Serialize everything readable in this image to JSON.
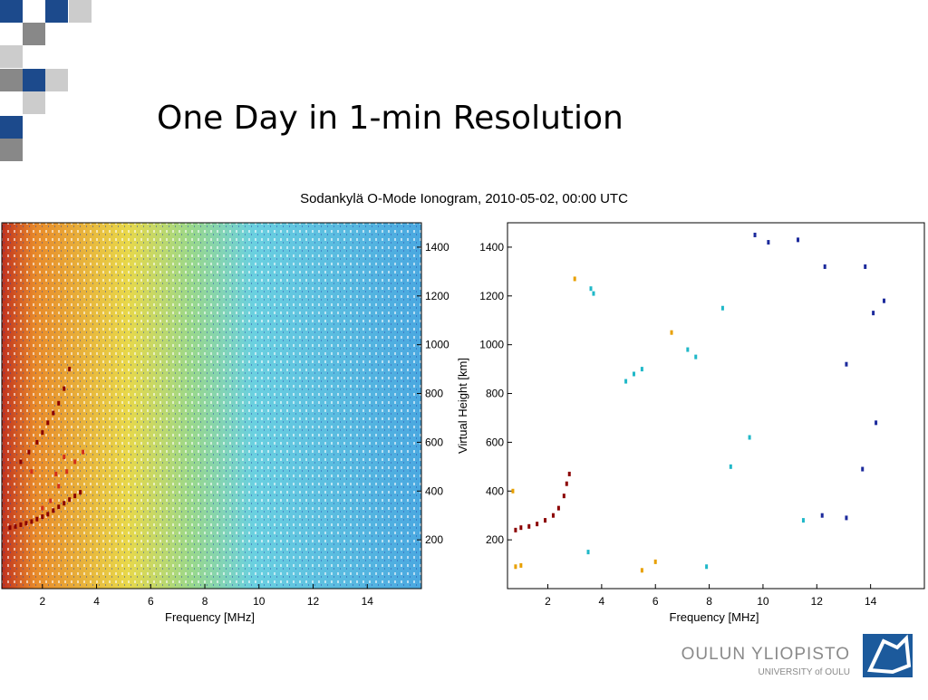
{
  "slide": {
    "title": "One Day in 1-min Resolution",
    "logo_name": "OULUN YLIOPISTO",
    "logo_subname": "UNIVERSITY of OULU"
  },
  "figure_title": "Sodankylä O-Mode Ionogram, 2010-05-02, 00:00 UTC",
  "chart_data": [
    {
      "type": "scatter",
      "xlabel": "Frequency [MHz]",
      "xlim": [
        0.5,
        16
      ],
      "ylim": [
        0,
        1500
      ],
      "xticks": [
        2,
        4,
        6,
        8,
        10,
        12,
        14
      ],
      "yticks": [
        200,
        400,
        600,
        800,
        1000,
        1200,
        1400
      ],
      "series": [
        {
          "color": "#8b0000",
          "x": [
            0.8,
            1.0,
            1.2,
            1.4,
            1.6,
            1.8,
            2.0,
            2.2,
            2.4,
            2.6,
            2.8,
            3.0,
            3.2,
            3.4,
            1.2,
            1.5,
            1.8,
            2.0,
            2.2,
            2.4,
            2.6,
            2.8,
            3.0
          ],
          "values": [
            250,
            255,
            262,
            268,
            275,
            285,
            295,
            305,
            320,
            335,
            350,
            365,
            380,
            395,
            520,
            560,
            600,
            640,
            680,
            720,
            760,
            820,
            900
          ]
        },
        {
          "color": "#d2301c",
          "x": [
            2.0,
            2.3,
            2.6,
            2.9,
            3.2,
            3.5,
            2.5,
            2.8,
            1.6
          ],
          "values": [
            330,
            360,
            420,
            480,
            520,
            560,
            470,
            540,
            480
          ]
        }
      ]
    },
    {
      "type": "scatter",
      "xlabel": "Frequency [MHz]",
      "ylabel": "Virtual Height [km]",
      "xlim": [
        0.5,
        16
      ],
      "ylim": [
        0,
        1500
      ],
      "xticks": [
        2,
        4,
        6,
        8,
        10,
        12,
        14
      ],
      "yticks": [
        200,
        400,
        600,
        800,
        1000,
        1200,
        1400
      ],
      "series": [
        {
          "color": "#8b0000",
          "x": [
            0.8,
            1.0,
            1.3,
            1.6,
            1.9,
            2.2,
            2.4,
            2.6,
            2.7,
            2.8
          ],
          "values": [
            240,
            250,
            255,
            265,
            280,
            300,
            330,
            380,
            430,
            470
          ]
        },
        {
          "color": "#e8a000",
          "x": [
            0.8,
            1.0,
            3.0,
            6.0,
            5.5,
            6.6,
            0.7
          ],
          "values": [
            90,
            95,
            1270,
            110,
            75,
            1050,
            400
          ]
        },
        {
          "color": "#20b8c8",
          "x": [
            3.6,
            3.7,
            4.9,
            5.2,
            5.5,
            7.2,
            7.5,
            8.5,
            9.5,
            7.9,
            3.5,
            11.5,
            8.8
          ],
          "values": [
            1230,
            1210,
            850,
            880,
            900,
            980,
            950,
            1150,
            620,
            90,
            150,
            280,
            500
          ]
        },
        {
          "color": "#1c2a9c",
          "x": [
            9.7,
            10.2,
            11.3,
            12.3,
            13.8,
            14.5,
            14.1,
            13.1,
            14.2,
            13.7,
            12.2,
            13.1
          ],
          "values": [
            1450,
            1420,
            1430,
            1320,
            1320,
            1180,
            1130,
            920,
            680,
            490,
            300,
            290
          ]
        }
      ]
    }
  ]
}
